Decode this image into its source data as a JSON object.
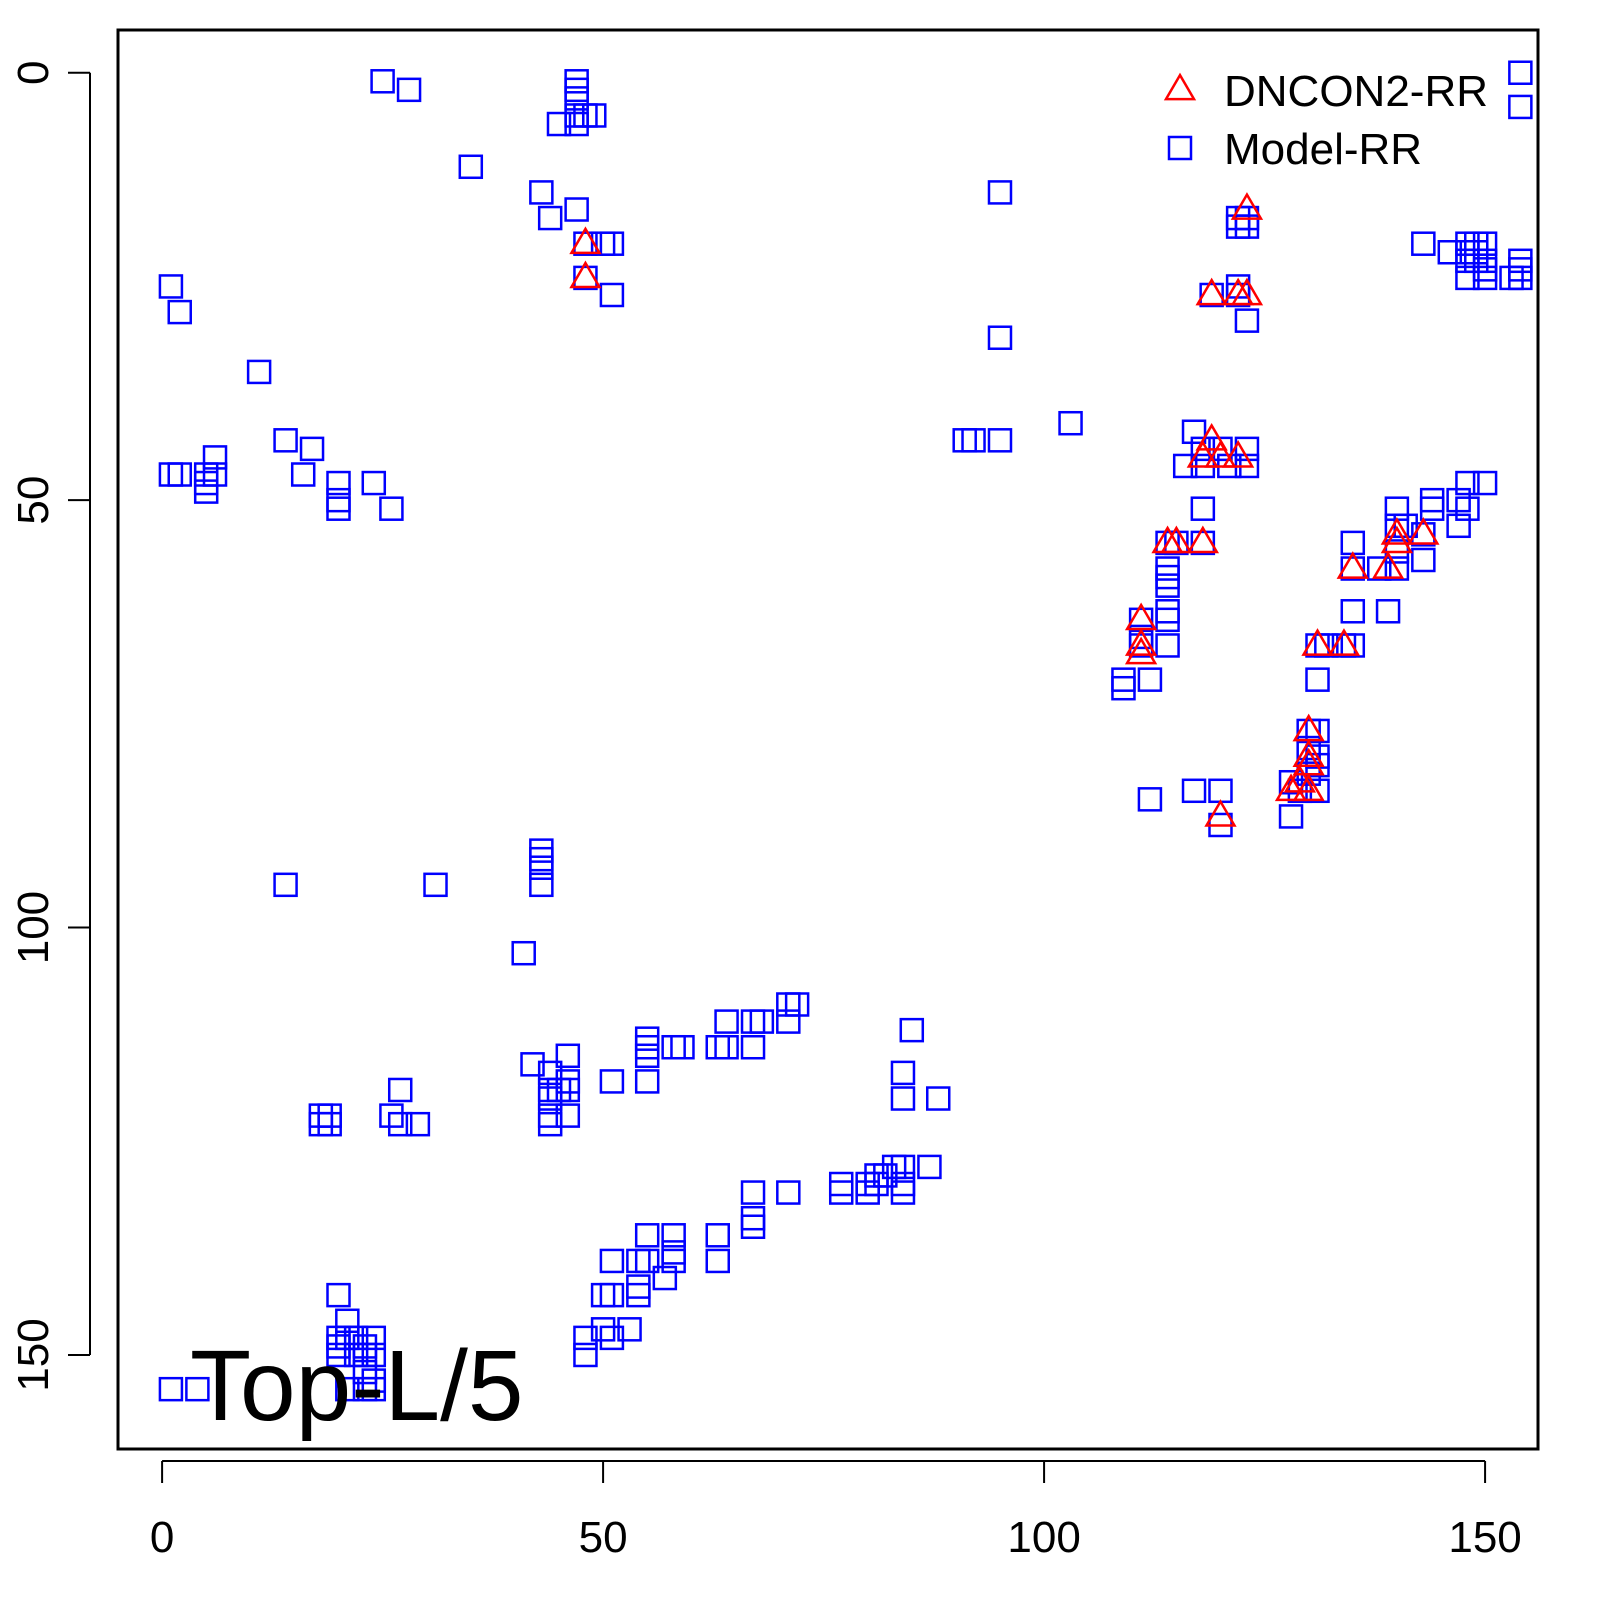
{
  "chart_data": {
    "type": "scatter",
    "title": "",
    "xlabel": "",
    "ylabel": "",
    "xlim": [
      -5,
      156
    ],
    "ylim": [
      -5,
      161
    ],
    "y_reversed": true,
    "x_ticks": [
      0,
      50,
      100,
      150
    ],
    "y_ticks": [
      0,
      50,
      100,
      150
    ],
    "grid": false,
    "legend_position": "top-right",
    "annotation": "Top-L/5",
    "series": [
      {
        "name": "DNCON2-RR",
        "marker": "triangle",
        "color": "#ff0000",
        "points": [
          [
            48,
            20
          ],
          [
            48,
            24
          ],
          [
            123,
            16
          ],
          [
            119,
            26
          ],
          [
            122,
            26
          ],
          [
            123,
            26
          ],
          [
            119,
            43
          ],
          [
            118,
            45
          ],
          [
            120,
            45
          ],
          [
            122,
            45
          ],
          [
            114,
            55
          ],
          [
            115,
            55
          ],
          [
            118,
            55
          ],
          [
            111,
            64
          ],
          [
            111,
            67
          ],
          [
            111,
            68
          ],
          [
            135,
            58
          ],
          [
            139,
            58
          ],
          [
            140,
            54
          ],
          [
            140,
            55
          ],
          [
            143,
            54
          ],
          [
            131,
            67
          ],
          [
            134,
            67
          ],
          [
            130,
            77
          ],
          [
            130,
            80
          ],
          [
            130,
            81
          ],
          [
            129,
            83
          ],
          [
            128,
            84
          ],
          [
            130,
            84
          ],
          [
            120,
            87
          ]
        ]
      },
      {
        "name": "Model-RR",
        "marker": "square",
        "color": "#0000ff",
        "points": [
          [
            25,
            1
          ],
          [
            28,
            2
          ],
          [
            47,
            1
          ],
          [
            47,
            2
          ],
          [
            47,
            3
          ],
          [
            47,
            5
          ],
          [
            48,
            5
          ],
          [
            49,
            5
          ],
          [
            45,
            6
          ],
          [
            47,
            6
          ],
          [
            35,
            11
          ],
          [
            43,
            14
          ],
          [
            44,
            17
          ],
          [
            47,
            16
          ],
          [
            48,
            20
          ],
          [
            50,
            20
          ],
          [
            51,
            20
          ],
          [
            48,
            24
          ],
          [
            51,
            26
          ],
          [
            1,
            25
          ],
          [
            2,
            28
          ],
          [
            11,
            35
          ],
          [
            1,
            47
          ],
          [
            2,
            47
          ],
          [
            5,
            47
          ],
          [
            5,
            48
          ],
          [
            5,
            49
          ],
          [
            6,
            45
          ],
          [
            6,
            47
          ],
          [
            14,
            43
          ],
          [
            16,
            47
          ],
          [
            17,
            44
          ],
          [
            20,
            48
          ],
          [
            20,
            50
          ],
          [
            20,
            51
          ],
          [
            24,
            48
          ],
          [
            26,
            51
          ],
          [
            95,
            14
          ],
          [
            95,
            31
          ],
          [
            91,
            43
          ],
          [
            92,
            43
          ],
          [
            95,
            43
          ],
          [
            103,
            41
          ],
          [
            122,
            17
          ],
          [
            123,
            17
          ],
          [
            123,
            18
          ],
          [
            122,
            18
          ],
          [
            119,
            26
          ],
          [
            122,
            26
          ],
          [
            123,
            29
          ],
          [
            122,
            25
          ],
          [
            154,
            0
          ],
          [
            154,
            4
          ],
          [
            143,
            20
          ],
          [
            146,
            21
          ],
          [
            148,
            20
          ],
          [
            149,
            20
          ],
          [
            150,
            20
          ],
          [
            148,
            21
          ],
          [
            149,
            21
          ],
          [
            150,
            22
          ],
          [
            148,
            22
          ],
          [
            149,
            22
          ],
          [
            150,
            23
          ],
          [
            148,
            24
          ],
          [
            150,
            24
          ],
          [
            153,
            24
          ],
          [
            154,
            22
          ],
          [
            154,
            23
          ],
          [
            154,
            24
          ],
          [
            117,
            42
          ],
          [
            118,
            44
          ],
          [
            120,
            44
          ],
          [
            123,
            44
          ],
          [
            116,
            46
          ],
          [
            118,
            46
          ],
          [
            121,
            46
          ],
          [
            123,
            46
          ],
          [
            118,
            51
          ],
          [
            114,
            55
          ],
          [
            115,
            55
          ],
          [
            118,
            55
          ],
          [
            114,
            58
          ],
          [
            114,
            59
          ],
          [
            114,
            60
          ],
          [
            114,
            63
          ],
          [
            114,
            64
          ],
          [
            114,
            67
          ],
          [
            111,
            64
          ],
          [
            111,
            66
          ],
          [
            111,
            67
          ],
          [
            112,
            71
          ],
          [
            109,
            71
          ],
          [
            109,
            72
          ],
          [
            140,
            51
          ],
          [
            140,
            53
          ],
          [
            141,
            53
          ],
          [
            143,
            54
          ],
          [
            144,
            50
          ],
          [
            144,
            51
          ],
          [
            147,
            50
          ],
          [
            148,
            48
          ],
          [
            148,
            51
          ],
          [
            150,
            48
          ],
          [
            147,
            53
          ],
          [
            135,
            55
          ],
          [
            135,
            58
          ],
          [
            138,
            58
          ],
          [
            140,
            56
          ],
          [
            140,
            58
          ],
          [
            143,
            57
          ],
          [
            135,
            63
          ],
          [
            139,
            63
          ],
          [
            131,
            67
          ],
          [
            132,
            67
          ],
          [
            134,
            67
          ],
          [
            135,
            67
          ],
          [
            131,
            71
          ],
          [
            130,
            77
          ],
          [
            131,
            77
          ],
          [
            130,
            79
          ],
          [
            131,
            80
          ],
          [
            131,
            81
          ],
          [
            130,
            82
          ],
          [
            128,
            83
          ],
          [
            129,
            84
          ],
          [
            131,
            84
          ],
          [
            128,
            87
          ],
          [
            117,
            84
          ],
          [
            120,
            84
          ],
          [
            112,
            85
          ],
          [
            120,
            88
          ],
          [
            14,
            95
          ],
          [
            31,
            95
          ],
          [
            43,
            91
          ],
          [
            43,
            92
          ],
          [
            43,
            93
          ],
          [
            43,
            95
          ],
          [
            41,
            103
          ],
          [
            18,
            122
          ],
          [
            19,
            122
          ],
          [
            18,
            123
          ],
          [
            19,
            123
          ],
          [
            27,
            119
          ],
          [
            26,
            122
          ],
          [
            27,
            123
          ],
          [
            29,
            123
          ],
          [
            42,
            116
          ],
          [
            44,
            117
          ],
          [
            44,
            119
          ],
          [
            45,
            119
          ],
          [
            44,
            120
          ],
          [
            46,
            115
          ],
          [
            46,
            118
          ],
          [
            46,
            119
          ],
          [
            44,
            122
          ],
          [
            46,
            122
          ],
          [
            44,
            123
          ],
          [
            51,
            118
          ],
          [
            55,
            113
          ],
          [
            55,
            114
          ],
          [
            55,
            115
          ],
          [
            55,
            118
          ],
          [
            58,
            114
          ],
          [
            59,
            114
          ],
          [
            63,
            114
          ],
          [
            64,
            111
          ],
          [
            64,
            114
          ],
          [
            67,
            111
          ],
          [
            67,
            114
          ],
          [
            68,
            111
          ],
          [
            71,
            109
          ],
          [
            71,
            111
          ],
          [
            72,
            109
          ],
          [
            85,
            112
          ],
          [
            84,
            117
          ],
          [
            84,
            120
          ],
          [
            88,
            120
          ],
          [
            20,
            143
          ],
          [
            21,
            146
          ],
          [
            20,
            148
          ],
          [
            20,
            149
          ],
          [
            20,
            150
          ],
          [
            21,
            148
          ],
          [
            22,
            148
          ],
          [
            22,
            150
          ],
          [
            23,
            149
          ],
          [
            23,
            150
          ],
          [
            24,
            148
          ],
          [
            24,
            150
          ],
          [
            23,
            152
          ],
          [
            24,
            153
          ],
          [
            23,
            154
          ],
          [
            24,
            154
          ],
          [
            21,
            154
          ],
          [
            1,
            154
          ],
          [
            4,
            154
          ],
          [
            48,
            148
          ],
          [
            48,
            150
          ],
          [
            50,
            147
          ],
          [
            51,
            148
          ],
          [
            53,
            147
          ],
          [
            50,
            143
          ],
          [
            51,
            143
          ],
          [
            54,
            142
          ],
          [
            54,
            143
          ],
          [
            57,
            141
          ],
          [
            51,
            139
          ],
          [
            54,
            139
          ],
          [
            55,
            139
          ],
          [
            58,
            138
          ],
          [
            58,
            139
          ],
          [
            55,
            136
          ],
          [
            58,
            136
          ],
          [
            63,
            136
          ],
          [
            63,
            139
          ],
          [
            67,
            131
          ],
          [
            67,
            134
          ],
          [
            67,
            135
          ],
          [
            71,
            131
          ],
          [
            77,
            130
          ],
          [
            77,
            131
          ],
          [
            80,
            130
          ],
          [
            80,
            131
          ],
          [
            81,
            129
          ],
          [
            81,
            130
          ],
          [
            82,
            129
          ],
          [
            83,
            128
          ],
          [
            84,
            128
          ],
          [
            84,
            130
          ],
          [
            84,
            131
          ],
          [
            87,
            128
          ]
        ]
      }
    ]
  }
}
